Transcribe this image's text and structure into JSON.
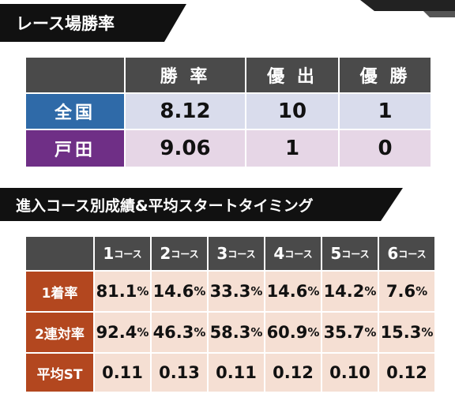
{
  "section1": {
    "title": "レース場勝率",
    "headers": [
      "勝 率",
      "優 出",
      "優 勝"
    ],
    "rows": [
      {
        "label": "全国",
        "values": [
          "8.12",
          "10",
          "1"
        ]
      },
      {
        "label": "戸田",
        "values": [
          "9.06",
          "1",
          "0"
        ]
      }
    ]
  },
  "section2": {
    "title": "進入コース別成績&平均スタートタイミング",
    "courses": [
      {
        "num": "1",
        "suffix": "コース"
      },
      {
        "num": "2",
        "suffix": "コース"
      },
      {
        "num": "3",
        "suffix": "コース"
      },
      {
        "num": "4",
        "suffix": "コース"
      },
      {
        "num": "5",
        "suffix": "コース"
      },
      {
        "num": "6",
        "suffix": "コース"
      }
    ],
    "rows": [
      {
        "label": "1着率",
        "values": [
          {
            "num": "81.1",
            "unit": "%"
          },
          {
            "num": "14.6",
            "unit": "%"
          },
          {
            "num": "33.3",
            "unit": "%"
          },
          {
            "num": "14.6",
            "unit": "%"
          },
          {
            "num": "14.2",
            "unit": "%"
          },
          {
            "num": "7.6",
            "unit": "%"
          }
        ]
      },
      {
        "label": "2連対率",
        "values": [
          {
            "num": "92.4",
            "unit": "%"
          },
          {
            "num": "46.3",
            "unit": "%"
          },
          {
            "num": "58.3",
            "unit": "%"
          },
          {
            "num": "60.9",
            "unit": "%"
          },
          {
            "num": "35.7",
            "unit": "%"
          },
          {
            "num": "15.3",
            "unit": "%"
          }
        ]
      },
      {
        "label": "平均ST",
        "values": [
          {
            "num": "0.11",
            "unit": ""
          },
          {
            "num": "0.13",
            "unit": ""
          },
          {
            "num": "0.11",
            "unit": ""
          },
          {
            "num": "0.12",
            "unit": ""
          },
          {
            "num": "0.10",
            "unit": ""
          },
          {
            "num": "0.12",
            "unit": ""
          }
        ]
      }
    ]
  },
  "colors": {
    "header": "#4a4a4a",
    "national": "#2f6aa8",
    "toda": "#6f2f86",
    "stat_label": "#b3471f",
    "stat_value_bg": "#f5dfd3"
  }
}
